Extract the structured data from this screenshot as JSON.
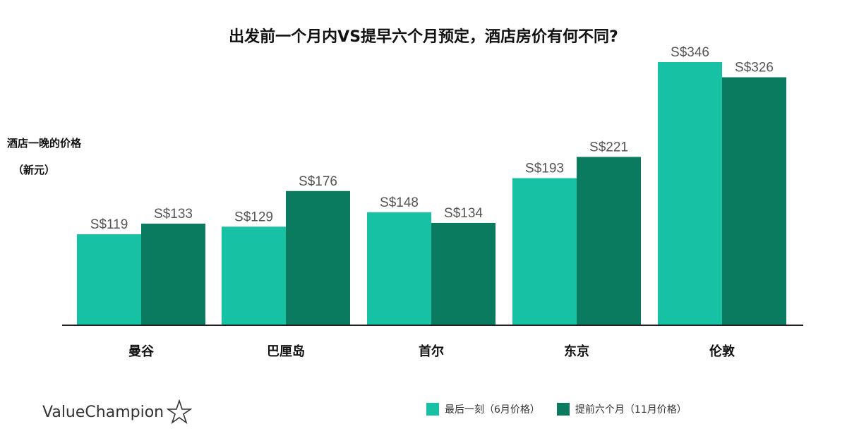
{
  "chart_data": {
    "type": "bar",
    "title": "出发前一个月内VS提早六个月预定，酒店房价有何不同?",
    "ylabel": "酒店一晚的价格",
    "yunit": "（新元）",
    "xlabel": "",
    "categories": [
      "曼谷",
      "巴厘岛",
      "首尔",
      "东京",
      "伦敦"
    ],
    "series": [
      {
        "name": "最后一刻（6月价格）",
        "values": [
          119,
          129,
          148,
          193,
          346
        ],
        "labels": [
          "S$119",
          "S$129",
          "S$148",
          "S$193",
          "S$346"
        ],
        "color": "#16c2a3"
      },
      {
        "name": "提前六个月（11月价格）",
        "values": [
          133,
          176,
          134,
          221,
          326
        ],
        "labels": [
          "S$133",
          "S$176",
          "S$134",
          "S$221",
          "S$326"
        ],
        "color": "#0b7b60"
      }
    ],
    "ylim": [
      0,
      346
    ],
    "grid": false,
    "legend": "bottom-right"
  },
  "brand": "ValueChampion"
}
